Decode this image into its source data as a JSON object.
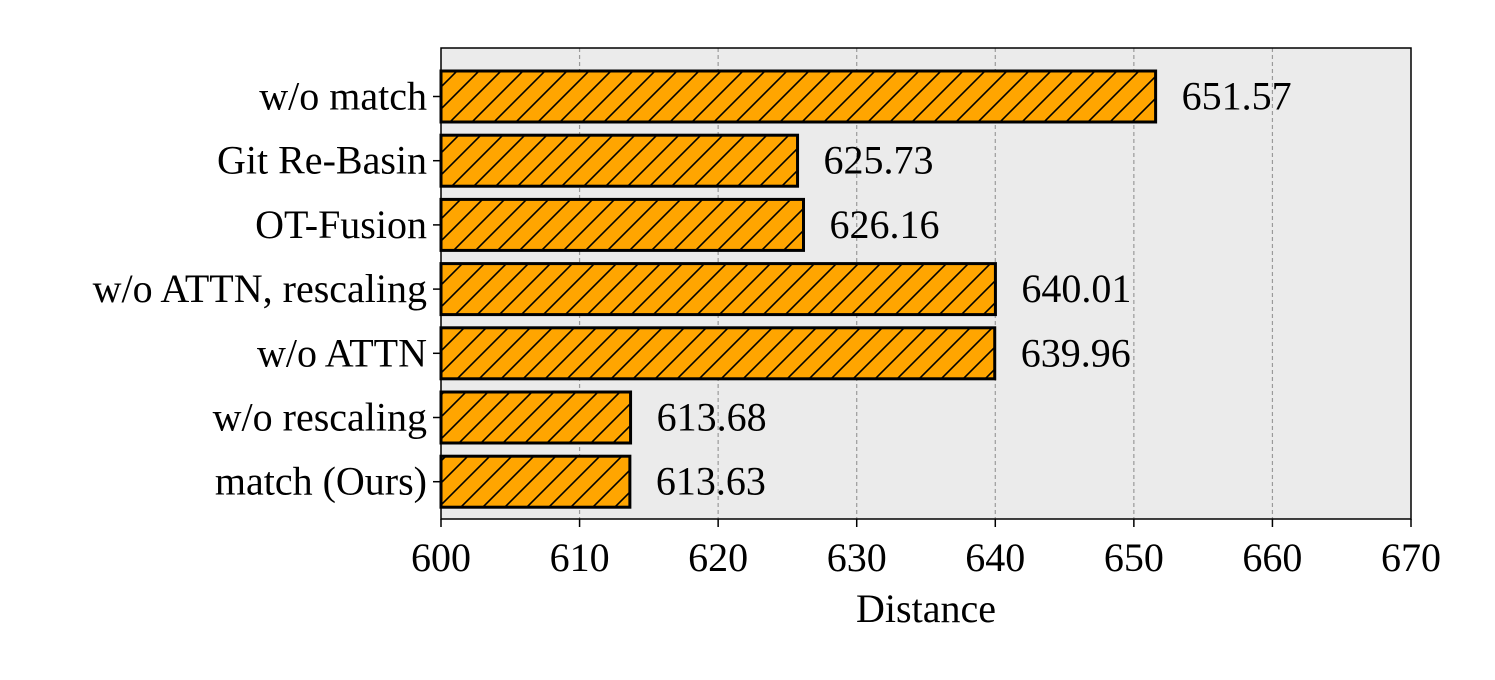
{
  "chart_data": {
    "type": "bar",
    "orientation": "horizontal",
    "categories": [
      "w/o match",
      "Git Re-Basin",
      "OT-Fusion",
      "w/o ATTN, rescaling",
      "w/o ATTN",
      "w/o rescaling",
      "match (Ours)"
    ],
    "values": [
      651.57,
      625.73,
      626.16,
      640.01,
      639.96,
      613.68,
      613.63
    ],
    "value_labels": [
      "651.57",
      "625.73",
      "626.16",
      "640.01",
      "639.96",
      "613.68",
      "613.63"
    ],
    "xlabel": "Distance",
    "ylabel": "",
    "xlim": [
      600,
      670
    ],
    "xticks": [
      600,
      610,
      620,
      630,
      640,
      650,
      660,
      670
    ],
    "grid": "vertical dashed",
    "bar_color": "#FFA500",
    "bar_edge_color": "#000000",
    "hatch": "diagonal",
    "background_color": "#EBEBEB"
  }
}
